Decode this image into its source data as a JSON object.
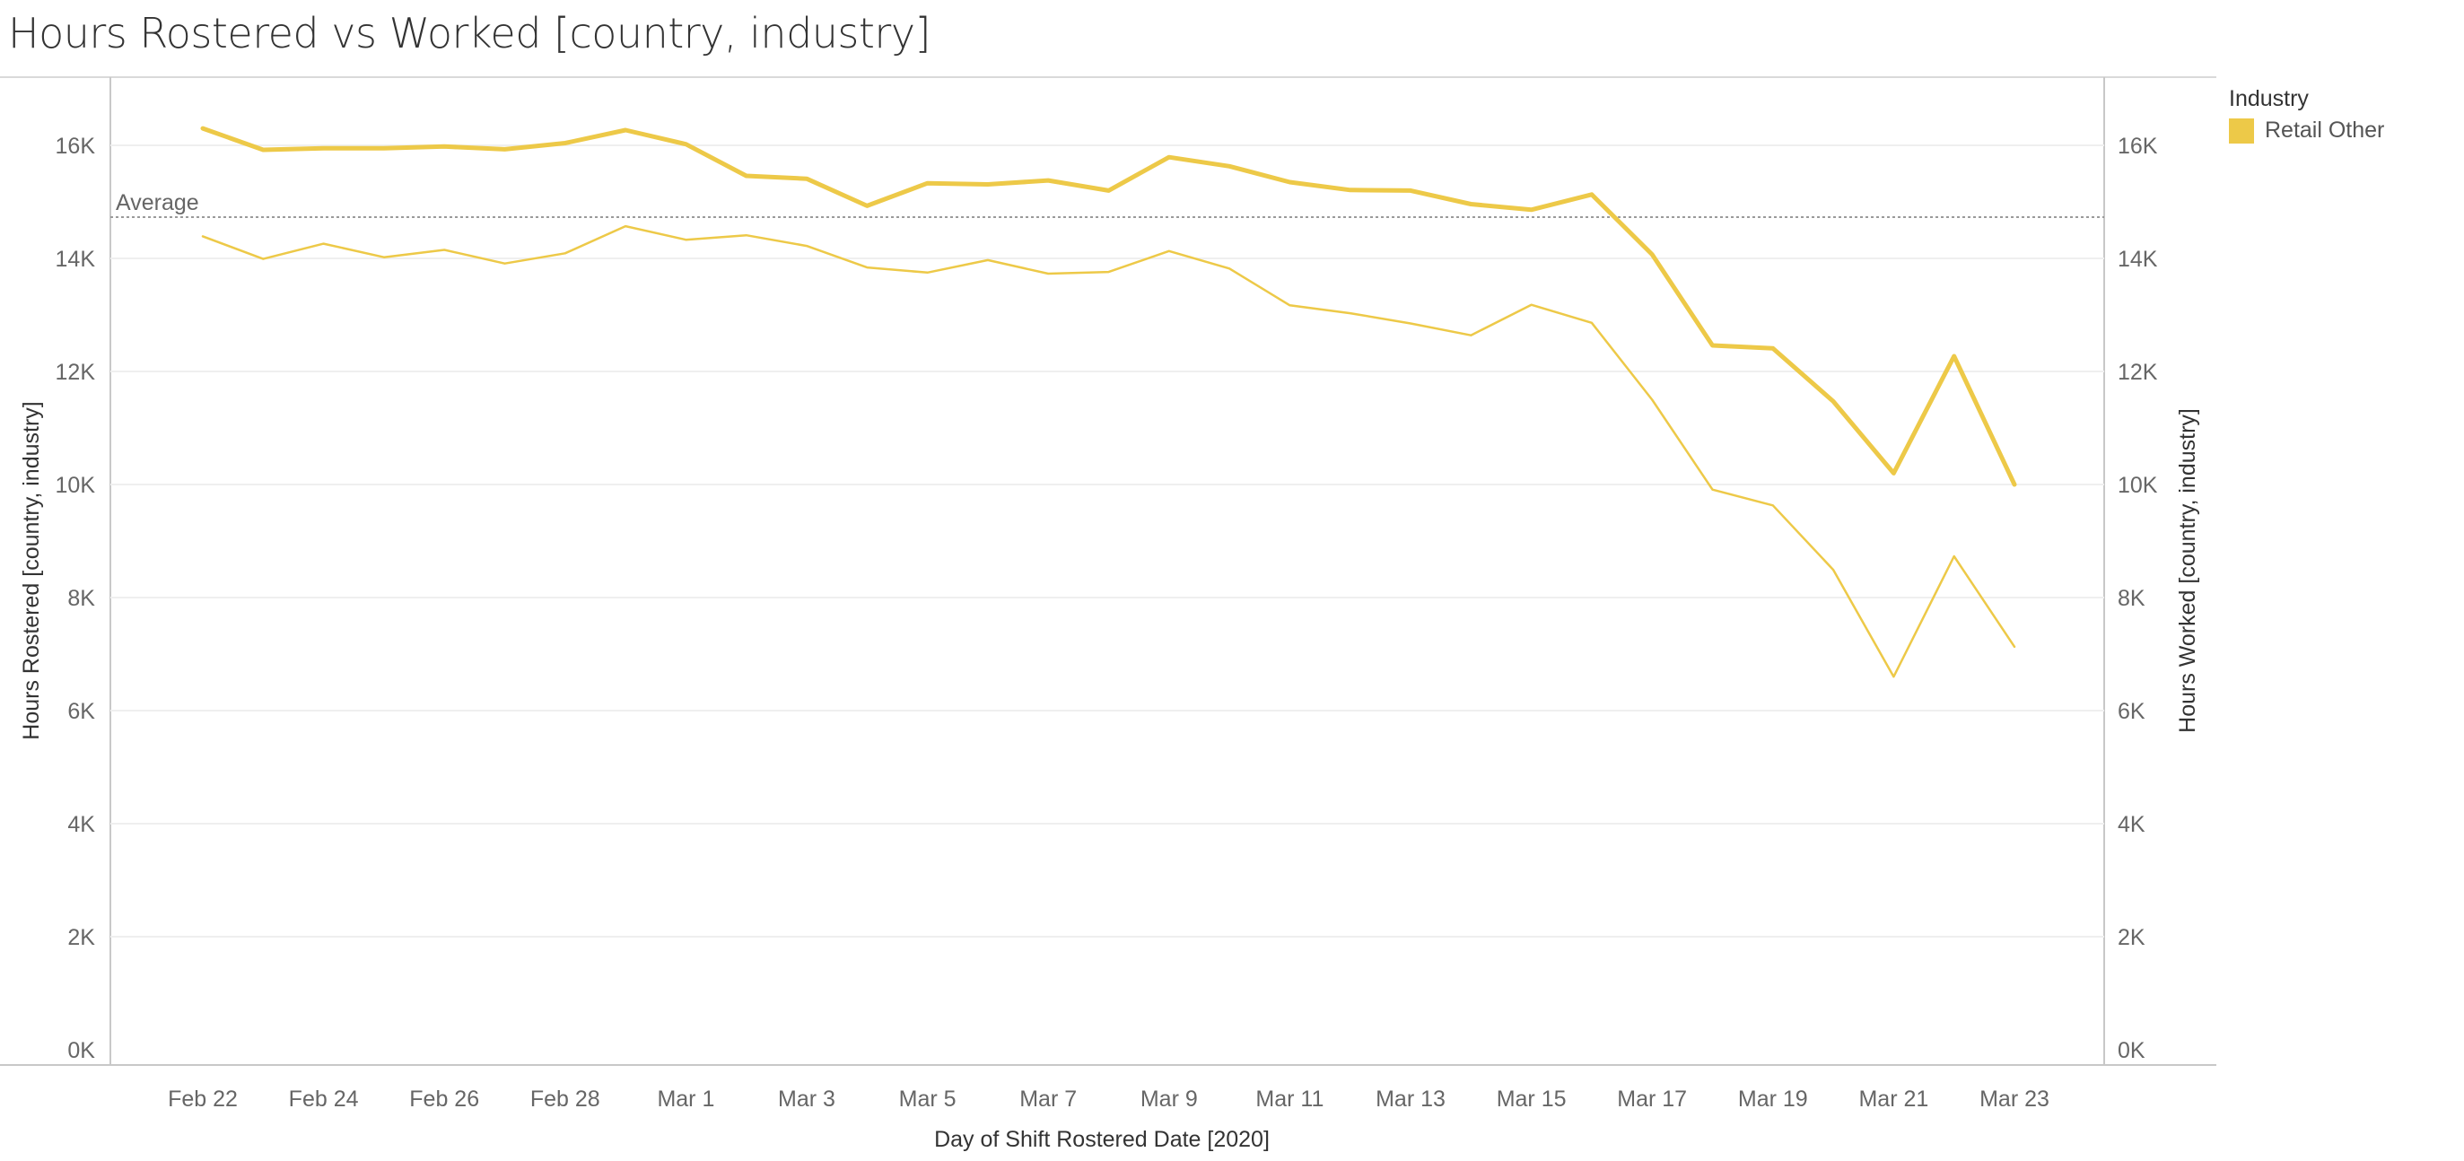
{
  "title": "Hours Rostered vs Worked [country, industry]",
  "legend": {
    "title": "Industry",
    "items": [
      {
        "label": "Retail Other",
        "color": "#EDC948"
      }
    ]
  },
  "chart_data": {
    "type": "line",
    "title": "Hours Rostered vs Worked [country, industry]",
    "xlabel": "Day of Shift Rostered Date [2020]",
    "ylabel": "Hours Rostered [country, industry]",
    "y2label": "Hours Worked [country, industry]",
    "ylim": [
      0,
      17000
    ],
    "yticks": [
      "0K",
      "2K",
      "4K",
      "6K",
      "8K",
      "10K",
      "12K",
      "14K",
      "16K"
    ],
    "xtick_labels": [
      "Feb 22",
      "Feb 24",
      "Feb 26",
      "Feb 28",
      "Mar 1",
      "Mar 3",
      "Mar 5",
      "Mar 7",
      "Mar 9",
      "Mar 11",
      "Mar 13",
      "Mar 15",
      "Mar 17",
      "Mar 19",
      "Mar 21",
      "Mar 23"
    ],
    "x": [
      "Feb 22",
      "Feb 23",
      "Feb 24",
      "Feb 25",
      "Feb 26",
      "Feb 27",
      "Feb 28",
      "Feb 29",
      "Mar 1",
      "Mar 2",
      "Mar 3",
      "Mar 4",
      "Mar 5",
      "Mar 6",
      "Mar 7",
      "Mar 8",
      "Mar 9",
      "Mar 10",
      "Mar 11",
      "Mar 12",
      "Mar 13",
      "Mar 14",
      "Mar 15",
      "Mar 16",
      "Mar 17",
      "Mar 18",
      "Mar 19",
      "Mar 20",
      "Mar 21",
      "Mar 22",
      "Mar 23"
    ],
    "series": [
      {
        "name": "Hours Rostered [country, industry]",
        "axis": "left",
        "color": "#EDC948",
        "values": [
          16300,
          15920,
          15950,
          15950,
          15980,
          15930,
          16040,
          16270,
          16020,
          15460,
          15410,
          14930,
          15330,
          15310,
          15380,
          15200,
          15790,
          15630,
          15350,
          15210,
          15200,
          14960,
          14860,
          15130,
          14070,
          12460,
          12410,
          11470,
          10200,
          12270,
          10000
        ]
      },
      {
        "name": "Hours Worked [country, industry]",
        "axis": "right",
        "color": "#EDC948",
        "values": [
          14390,
          13990,
          14260,
          14020,
          14150,
          13910,
          14090,
          14570,
          14330,
          14410,
          14220,
          13840,
          13750,
          13970,
          13730,
          13760,
          14130,
          13820,
          13170,
          13030,
          12850,
          12640,
          13180,
          12860,
          11500,
          9910,
          9630,
          8490,
          6600,
          8730,
          7130
        ]
      }
    ],
    "reference_line": {
      "label": "Average",
      "value": 14730
    },
    "grid": true,
    "legend_position": "right"
  }
}
